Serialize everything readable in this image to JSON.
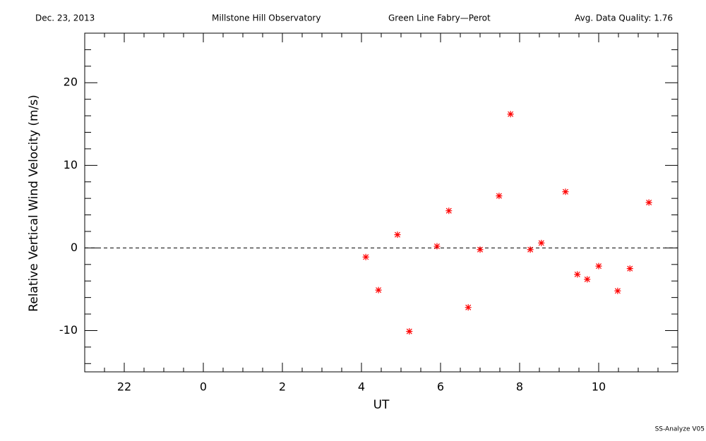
{
  "chart_data": {
    "type": "scatter",
    "header": [
      "Dec. 23, 2013",
      "Millstone Hill Observatory",
      "Green Line Fabry—Perot",
      "Avg. Data Quality: 1.76"
    ],
    "footer": "SS-Analyze V05",
    "x_label": "UT",
    "y_label": "Relative Vertical Wind Velocity (m/s)",
    "xlim": [
      -3,
      12
    ],
    "ylim": [
      -15,
      26
    ],
    "xticks": [
      {
        "value": -2,
        "label": "22"
      },
      0,
      2,
      4,
      6,
      8,
      10
    ],
    "yticks": [
      -10,
      0,
      10,
      20
    ],
    "xminorticks": [
      -2.5,
      -1.5,
      -1,
      -0.5,
      0.5,
      1,
      1.5,
      2.5,
      3,
      3.5,
      4.5,
      5,
      5.5,
      6.5,
      7,
      7.5,
      8.5,
      9,
      9.5,
      10.5,
      11,
      11.5
    ],
    "yminorticks": [
      -14,
      -12,
      -8,
      -6,
      -4,
      -2,
      2,
      4,
      6,
      8,
      12,
      14,
      16,
      18,
      22,
      24
    ],
    "hline": 0,
    "series": [
      {
        "color": "#ff0000",
        "x": [
          4.11,
          4.43,
          4.91,
          5.21,
          5.91,
          6.21,
          6.7,
          7.0,
          7.48,
          7.77,
          8.27,
          8.55,
          9.16,
          9.46,
          9.71,
          10.0,
          10.48,
          10.79,
          11.27
        ],
        "values": [
          -1.1,
          -5.1,
          1.6,
          -10.1,
          0.2,
          4.5,
          -7.2,
          -0.2,
          6.3,
          16.2,
          -0.2,
          0.6,
          6.8,
          -3.2,
          -3.8,
          -2.2,
          -5.2,
          -2.5,
          5.5
        ]
      }
    ]
  }
}
